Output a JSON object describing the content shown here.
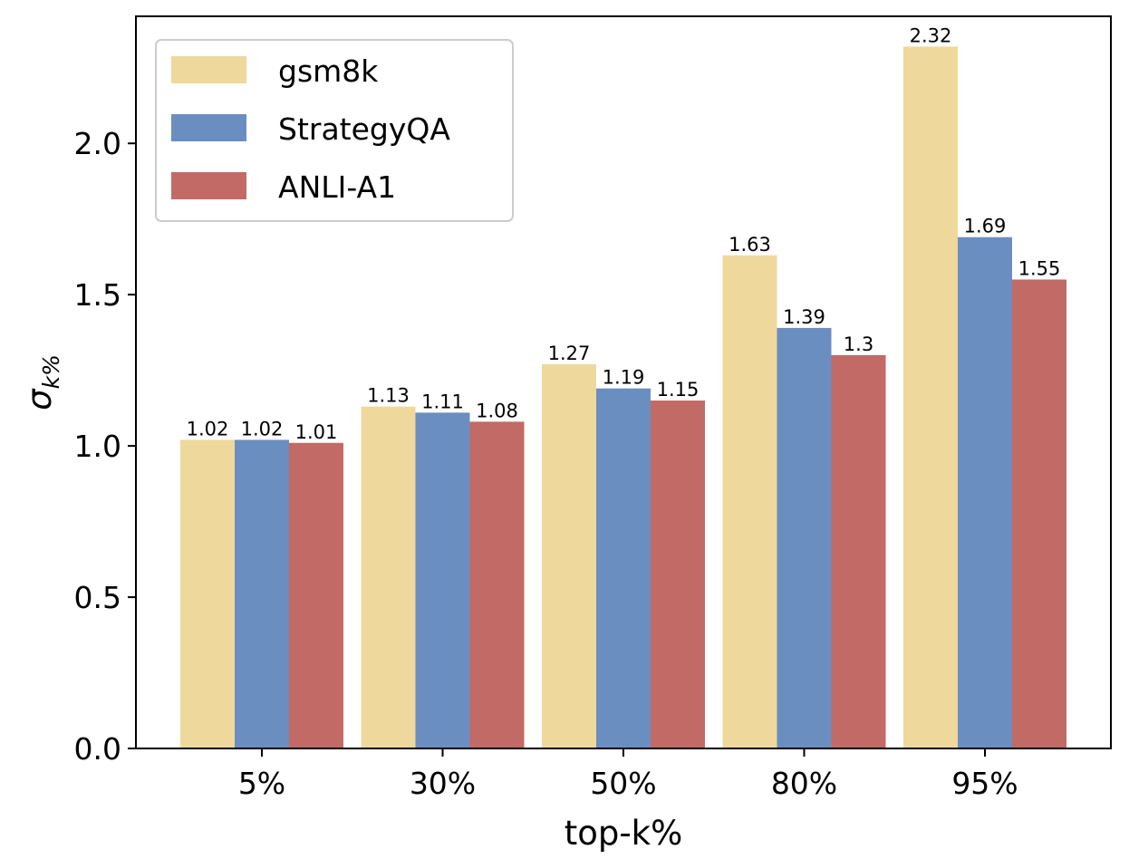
{
  "chart_data": {
    "type": "bar",
    "categories": [
      "5%",
      "30%",
      "50%",
      "80%",
      "95%"
    ],
    "series": [
      {
        "name": "gsm8k",
        "color": "#efd89b",
        "values": [
          1.02,
          1.13,
          1.27,
          1.63,
          2.32
        ],
        "labels": [
          "1.02",
          "1.13",
          "1.27",
          "1.63",
          "2.32"
        ]
      },
      {
        "name": "StrategyQA",
        "color": "#6b8ec1",
        "values": [
          1.02,
          1.11,
          1.19,
          1.39,
          1.69
        ],
        "labels": [
          "1.02",
          "1.11",
          "1.19",
          "1.39",
          "1.69"
        ]
      },
      {
        "name": "ANLI-A1",
        "color": "#c26a66",
        "values": [
          1.01,
          1.08,
          1.15,
          1.3,
          1.55
        ],
        "labels": [
          "1.01",
          "1.08",
          "1.15",
          "1.3",
          "1.55"
        ]
      }
    ],
    "xlabel": "top-k%",
    "ylabel_base": "σ",
    "ylabel_sub": "k%",
    "ylim": [
      0,
      2.42
    ],
    "yticks": [
      0.0,
      0.5,
      1.0,
      1.5,
      2.0
    ],
    "ytick_labels": [
      "0.0",
      "0.5",
      "1.0",
      "1.5",
      "2.0"
    ],
    "legend_position": "top-left",
    "grid": false
  }
}
